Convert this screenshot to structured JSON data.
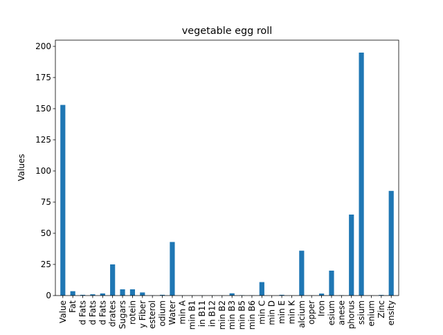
{
  "chart_data": {
    "type": "bar",
    "title": "vegetable egg roll",
    "xlabel": "",
    "ylabel": "Values",
    "ylim": [
      0,
      205
    ],
    "yticks": [
      0,
      25,
      50,
      75,
      100,
      125,
      150,
      175,
      200
    ],
    "grid": false,
    "bar_color": "#1f77b4",
    "categories": [
      "Value",
      "Fat",
      "d Fats",
      "d Fats",
      "d Fats",
      "drates",
      "Sugars",
      "rotein",
      "y Fiber",
      "esterol",
      "odium",
      "Water",
      "min A",
      "min B1",
      "in B11",
      "in B12",
      "min B2",
      "min B3",
      "min B5",
      "min B6",
      "min C",
      "min D",
      "min E",
      "min K",
      "alcium",
      "opper",
      "Iron",
      "esium",
      "anese",
      "phorus",
      "ssium",
      "enium",
      "Zinc",
      "ensity"
    ],
    "values": [
      153,
      3.5,
      0.6,
      1.0,
      1.7,
      25.0,
      5.0,
      5.0,
      2.5,
      0.2,
      0.6,
      43.0,
      0.1,
      0.1,
      0.1,
      0.1,
      0.1,
      1.8,
      0.3,
      0.2,
      10.8,
      0.0,
      0.6,
      0.1,
      36.0,
      0.1,
      1.6,
      20.0,
      0.3,
      65.0,
      195.0,
      0.1,
      0.5,
      84.0
    ]
  }
}
